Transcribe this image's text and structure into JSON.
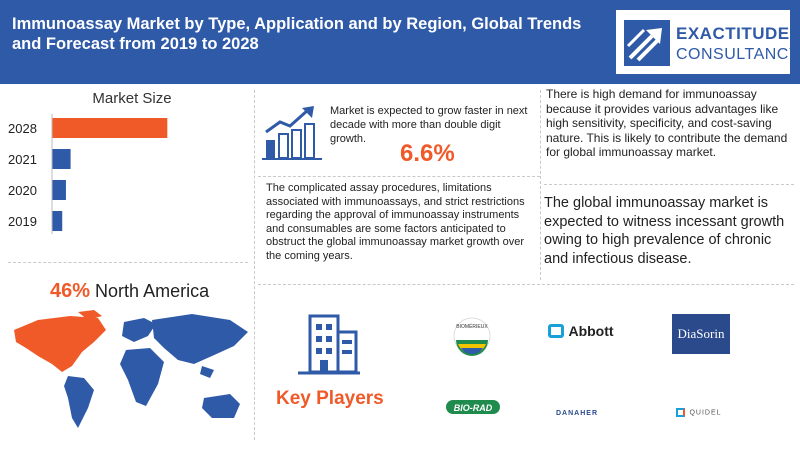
{
  "header": {
    "title": "Immunoassay Market by Type, Application and by Region, Global Trends and Forecast from 2019 to 2028"
  },
  "logo": {
    "line1": "EXACTITUDE",
    "line2": "CONSULTANCY"
  },
  "colors": {
    "brand_blue": "#2f5aa8",
    "accent_orange": "#f05a28",
    "bar_blue": "#2f5aa8"
  },
  "chart_data": {
    "type": "bar",
    "orientation": "horizontal",
    "title": "Market Size",
    "categories": [
      "2028",
      "2021",
      "2020",
      "2019"
    ],
    "values": [
      6.2,
      1.0,
      0.75,
      0.55
    ],
    "highlight_category": "2028",
    "grid": false,
    "axis_labels_visible": false
  },
  "growth": {
    "text": "Market is expected to grow faster in next decade with more than double digit growth.",
    "value": "6.6%"
  },
  "demand": {
    "text": "There is high demand for immunoassay because it provides various advantages like high sensitivity, specificity, and cost-saving nature. This is likely to contribute the demand for global immunoassay market."
  },
  "restrictions": {
    "text": "The complicated assay procedures, limitations associated with immunoassays, and strict restrictions regarding the approval of immunoassay instruments and consumables are some factors anticipated to obstruct the global immunoassay market growth over the coming years."
  },
  "prevalence": {
    "text": "The global immunoassay market is expected to witness incessant growth owing to high prevalence of chronic and infectious disease."
  },
  "region": {
    "value": "46%",
    "name": "North America"
  },
  "key_players": {
    "title": "Key Players",
    "logos": [
      "BIOMÉRIEUX",
      "Abbott",
      "DiaSorin",
      "BIO-RAD",
      "DANAHER",
      "QUIDEL"
    ]
  }
}
